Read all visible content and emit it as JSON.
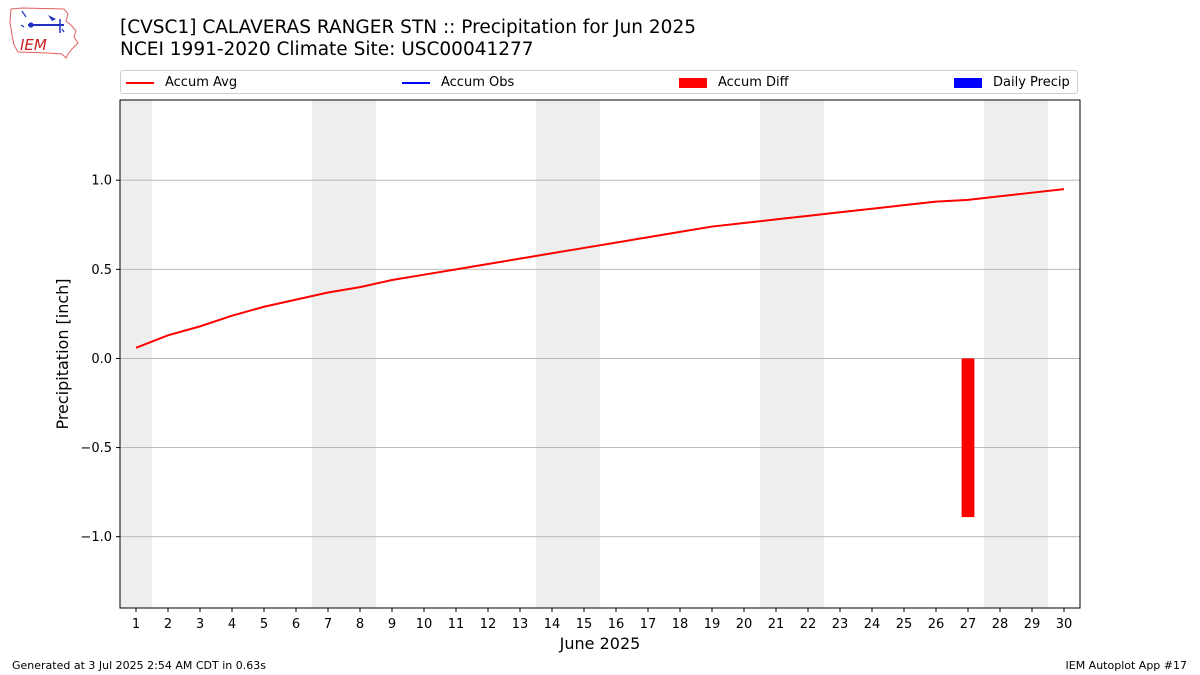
{
  "header": {
    "title_line1": "[CVSC1] CALAVERAS RANGER STN :: Precipitation for Jun 2025",
    "title_line2": "NCEI 1991-2020 Climate Site: USC00041277",
    "logo_text": "IEM"
  },
  "footer": {
    "left": "Generated at 3 Jul 2025 2:54 AM CDT in 0.63s",
    "right": "IEM Autoplot App #17"
  },
  "legend": {
    "placement": "top",
    "items": [
      {
        "label": "Accum Avg",
        "kind": "line",
        "color": "#ff0000"
      },
      {
        "label": "Accum Obs",
        "kind": "line",
        "color": "#0000ff"
      },
      {
        "label": "Accum Diff",
        "kind": "box",
        "color": "#ff0000"
      },
      {
        "label": "Daily Precip",
        "kind": "box",
        "color": "#0000ff"
      }
    ]
  },
  "colors": {
    "accum_avg": "#ff0000",
    "accum_diff": "#ff0000",
    "weekend_band": "#eeeeee",
    "grid": "#b0b0b0"
  },
  "chart_data": {
    "type": "line",
    "xlabel": "June 2025",
    "ylabel": "Precipitation [inch]",
    "x": [
      1,
      2,
      3,
      4,
      5,
      6,
      7,
      8,
      9,
      10,
      11,
      12,
      13,
      14,
      15,
      16,
      17,
      18,
      19,
      20,
      21,
      22,
      23,
      24,
      25,
      26,
      27,
      28,
      29,
      30
    ],
    "xlim": [
      0.5,
      30.5
    ],
    "ylim": [
      -1.4,
      1.45
    ],
    "yticks": [
      -1.0,
      -0.5,
      0.0,
      0.5,
      1.0
    ],
    "ytick_labels": [
      "−1.0",
      "−0.5",
      "0.0",
      "0.5",
      "1.0"
    ],
    "grid": "horizontal",
    "weekend_days": [
      1,
      7,
      8,
      14,
      15,
      21,
      22,
      28,
      29
    ],
    "series": [
      {
        "name": "Accum Avg",
        "values": [
          0.06,
          0.13,
          0.18,
          0.24,
          0.29,
          0.33,
          0.37,
          0.4,
          0.44,
          0.47,
          0.5,
          0.53,
          0.56,
          0.59,
          0.62,
          0.65,
          0.68,
          0.71,
          0.74,
          0.76,
          0.78,
          0.8,
          0.82,
          0.84,
          0.86,
          0.88,
          0.89,
          0.91,
          0.93,
          0.95
        ]
      }
    ],
    "bars": {
      "name": "Accum Diff",
      "x": [
        27
      ],
      "values": [
        -0.89
      ]
    }
  }
}
